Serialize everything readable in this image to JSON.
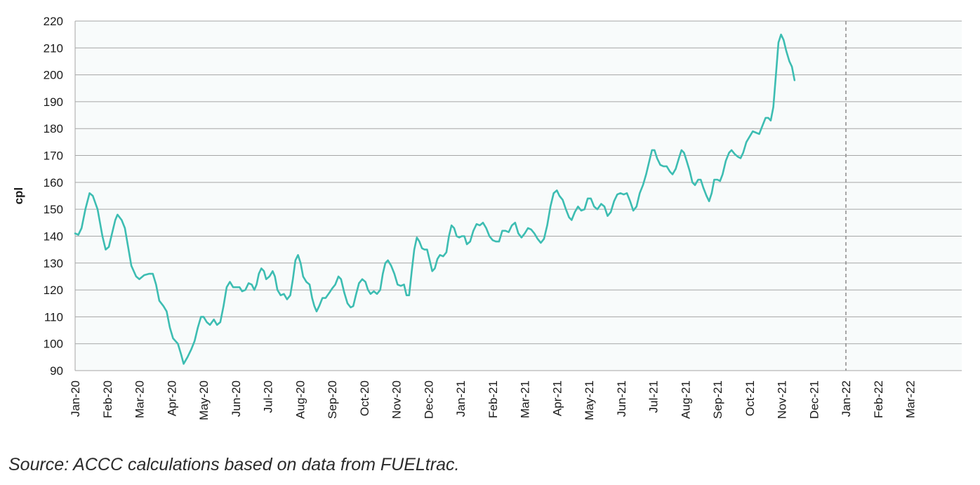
{
  "chart_data": {
    "type": "line",
    "title": "",
    "xlabel": "",
    "ylabel": "cpl",
    "ylim": [
      90,
      220
    ],
    "yticks": [
      90,
      100,
      110,
      120,
      130,
      140,
      150,
      160,
      170,
      180,
      190,
      200,
      210,
      220
    ],
    "xticks": [
      "Jan-20",
      "Feb-20",
      "Mar-20",
      "Apr-20",
      "May-20",
      "Jun-20",
      "Jul-20",
      "Aug-20",
      "Sep-20",
      "Oct-20",
      "Nov-20",
      "Dec-20",
      "Jan-21",
      "Feb-21",
      "Mar-21",
      "Apr-21",
      "May-21",
      "Jun-21",
      "Jul-21",
      "Aug-21",
      "Sep-21",
      "Oct-21",
      "Nov-21",
      "Dec-21",
      "Jan-22",
      "Feb-22",
      "Mar-22"
    ],
    "grid": true,
    "reference_line": "Jan-22",
    "colors": {
      "line": "#3dbdb2",
      "grid": "#a6a6a6",
      "plot_bg": "#f8fbfb",
      "ref_line": "#8a8a8a"
    },
    "series": [
      {
        "x_unit": "months since Jan-20",
        "points": [
          [
            0.0,
            141
          ],
          [
            0.1,
            140.5
          ],
          [
            0.2,
            143
          ],
          [
            0.32,
            150
          ],
          [
            0.45,
            156
          ],
          [
            0.55,
            155
          ],
          [
            0.7,
            150
          ],
          [
            0.85,
            140
          ],
          [
            0.95,
            135
          ],
          [
            1.05,
            136
          ],
          [
            1.15,
            141
          ],
          [
            1.25,
            146
          ],
          [
            1.32,
            148
          ],
          [
            1.45,
            146
          ],
          [
            1.55,
            143
          ],
          [
            1.65,
            136
          ],
          [
            1.75,
            129
          ],
          [
            1.9,
            125
          ],
          [
            2.0,
            124
          ],
          [
            2.15,
            125.5
          ],
          [
            2.3,
            126
          ],
          [
            2.42,
            126
          ],
          [
            2.52,
            122
          ],
          [
            2.62,
            116
          ],
          [
            2.75,
            114
          ],
          [
            2.85,
            112
          ],
          [
            2.95,
            106
          ],
          [
            3.05,
            102
          ],
          [
            3.2,
            100
          ],
          [
            3.3,
            96
          ],
          [
            3.38,
            92.5
          ],
          [
            3.5,
            95
          ],
          [
            3.62,
            98
          ],
          [
            3.72,
            101
          ],
          [
            3.82,
            106
          ],
          [
            3.92,
            110
          ],
          [
            4.0,
            110
          ],
          [
            4.1,
            108
          ],
          [
            4.2,
            107
          ],
          [
            4.32,
            109
          ],
          [
            4.42,
            107
          ],
          [
            4.52,
            108
          ],
          [
            4.62,
            114
          ],
          [
            4.72,
            121
          ],
          [
            4.82,
            123
          ],
          [
            4.92,
            121
          ],
          [
            5.02,
            121
          ],
          [
            5.12,
            121
          ],
          [
            5.2,
            119.5
          ],
          [
            5.3,
            120
          ],
          [
            5.4,
            122.5
          ],
          [
            5.5,
            122
          ],
          [
            5.58,
            120
          ],
          [
            5.65,
            122
          ],
          [
            5.72,
            126
          ],
          [
            5.8,
            128
          ],
          [
            5.88,
            127
          ],
          [
            5.95,
            124
          ],
          [
            6.05,
            125
          ],
          [
            6.15,
            127
          ],
          [
            6.22,
            125
          ],
          [
            6.3,
            120
          ],
          [
            6.4,
            118
          ],
          [
            6.5,
            118.5
          ],
          [
            6.6,
            116.5
          ],
          [
            6.7,
            118
          ],
          [
            6.78,
            124
          ],
          [
            6.86,
            131
          ],
          [
            6.94,
            133
          ],
          [
            7.02,
            130
          ],
          [
            7.1,
            125
          ],
          [
            7.2,
            123
          ],
          [
            7.3,
            122
          ],
          [
            7.38,
            117
          ],
          [
            7.45,
            114
          ],
          [
            7.52,
            112
          ],
          [
            7.6,
            114
          ],
          [
            7.7,
            117
          ],
          [
            7.8,
            117
          ],
          [
            7.92,
            119
          ],
          [
            8.0,
            120.5
          ],
          [
            8.1,
            122
          ],
          [
            8.2,
            125
          ],
          [
            8.28,
            124
          ],
          [
            8.38,
            119
          ],
          [
            8.48,
            115
          ],
          [
            8.58,
            113.5
          ],
          [
            8.66,
            114
          ],
          [
            8.74,
            118
          ],
          [
            8.84,
            122.5
          ],
          [
            8.94,
            124
          ],
          [
            9.04,
            123
          ],
          [
            9.12,
            120
          ],
          [
            9.2,
            118.5
          ],
          [
            9.3,
            119.5
          ],
          [
            9.4,
            118.5
          ],
          [
            9.5,
            120
          ],
          [
            9.58,
            126
          ],
          [
            9.66,
            130
          ],
          [
            9.74,
            131
          ],
          [
            9.84,
            129
          ],
          [
            9.94,
            126
          ],
          [
            10.04,
            122
          ],
          [
            10.14,
            121.5
          ],
          [
            10.24,
            122
          ],
          [
            10.32,
            118
          ],
          [
            10.4,
            118
          ],
          [
            10.48,
            127
          ],
          [
            10.56,
            135
          ],
          [
            10.64,
            139.5
          ],
          [
            10.72,
            138
          ],
          [
            10.8,
            135.5
          ],
          [
            10.88,
            135
          ],
          [
            10.96,
            135
          ],
          [
            11.04,
            131
          ],
          [
            11.12,
            127
          ],
          [
            11.2,
            128
          ],
          [
            11.28,
            131.5
          ],
          [
            11.36,
            133
          ],
          [
            11.46,
            132.5
          ],
          [
            11.56,
            134
          ],
          [
            11.64,
            140
          ],
          [
            11.72,
            144
          ],
          [
            11.8,
            143
          ],
          [
            11.88,
            140
          ],
          [
            11.96,
            139.5
          ],
          [
            12.04,
            140
          ],
          [
            12.12,
            140
          ],
          [
            12.2,
            137
          ],
          [
            12.3,
            138
          ],
          [
            12.4,
            142
          ],
          [
            12.5,
            144.5
          ],
          [
            12.6,
            144
          ],
          [
            12.7,
            145
          ],
          [
            12.8,
            143
          ],
          [
            12.9,
            140
          ],
          [
            13.0,
            138.5
          ],
          [
            13.1,
            138
          ],
          [
            13.2,
            138
          ],
          [
            13.3,
            142
          ],
          [
            13.4,
            142
          ],
          [
            13.5,
            141.5
          ],
          [
            13.6,
            144
          ],
          [
            13.7,
            145
          ],
          [
            13.8,
            141
          ],
          [
            13.9,
            139.5
          ],
          [
            14.0,
            141
          ],
          [
            14.1,
            143
          ],
          [
            14.2,
            142.5
          ],
          [
            14.3,
            141
          ],
          [
            14.4,
            139
          ],
          [
            14.5,
            137.5
          ],
          [
            14.6,
            139
          ],
          [
            14.7,
            144
          ],
          [
            14.8,
            151
          ],
          [
            14.9,
            156
          ],
          [
            15.0,
            157
          ],
          [
            15.08,
            155
          ],
          [
            15.18,
            153.5
          ],
          [
            15.28,
            150
          ],
          [
            15.38,
            147
          ],
          [
            15.46,
            146
          ],
          [
            15.56,
            149
          ],
          [
            15.66,
            151
          ],
          [
            15.76,
            149.5
          ],
          [
            15.86,
            150
          ],
          [
            15.96,
            154
          ],
          [
            16.06,
            154
          ],
          [
            16.16,
            151
          ],
          [
            16.26,
            150
          ],
          [
            16.38,
            152
          ],
          [
            16.48,
            151
          ],
          [
            16.58,
            147.5
          ],
          [
            16.68,
            149
          ],
          [
            16.78,
            153
          ],
          [
            16.88,
            155.5
          ],
          [
            16.98,
            156
          ],
          [
            17.08,
            155.5
          ],
          [
            17.18,
            156
          ],
          [
            17.28,
            153
          ],
          [
            17.38,
            149.5
          ],
          [
            17.48,
            151
          ],
          [
            17.58,
            156
          ],
          [
            17.68,
            159
          ],
          [
            17.78,
            163
          ],
          [
            17.88,
            168
          ],
          [
            17.96,
            172
          ],
          [
            18.04,
            172
          ],
          [
            18.12,
            169
          ],
          [
            18.22,
            166.5
          ],
          [
            18.32,
            166
          ],
          [
            18.42,
            166
          ],
          [
            18.52,
            164
          ],
          [
            18.6,
            163
          ],
          [
            18.7,
            165
          ],
          [
            18.8,
            169
          ],
          [
            18.88,
            172
          ],
          [
            18.96,
            171
          ],
          [
            19.04,
            168
          ],
          [
            19.14,
            164
          ],
          [
            19.22,
            160
          ],
          [
            19.3,
            159
          ],
          [
            19.4,
            161
          ],
          [
            19.48,
            161
          ],
          [
            19.56,
            158
          ],
          [
            19.66,
            155
          ],
          [
            19.74,
            153
          ],
          [
            19.82,
            156
          ],
          [
            19.9,
            161
          ],
          [
            20.0,
            161
          ],
          [
            20.08,
            160.5
          ],
          [
            20.16,
            163
          ],
          [
            20.26,
            168
          ],
          [
            20.36,
            171
          ],
          [
            20.44,
            172
          ],
          [
            20.54,
            170.5
          ],
          [
            20.64,
            169.5
          ],
          [
            20.72,
            169
          ],
          [
            20.8,
            171
          ],
          [
            20.9,
            175
          ],
          [
            21.0,
            177
          ],
          [
            21.1,
            179
          ],
          [
            21.2,
            178.5
          ],
          [
            21.3,
            178
          ],
          [
            21.4,
            181
          ],
          [
            21.5,
            184
          ],
          [
            21.58,
            184
          ],
          [
            21.66,
            183
          ],
          [
            21.74,
            188
          ],
          [
            21.82,
            200
          ],
          [
            21.9,
            212
          ],
          [
            21.98,
            215
          ],
          [
            22.06,
            213
          ],
          [
            22.14,
            209
          ],
          [
            22.24,
            205
          ],
          [
            22.32,
            203
          ],
          [
            22.4,
            198
          ]
        ]
      }
    ]
  },
  "source_note": "Source:  ACCC calculations based on data from FUELtrac."
}
